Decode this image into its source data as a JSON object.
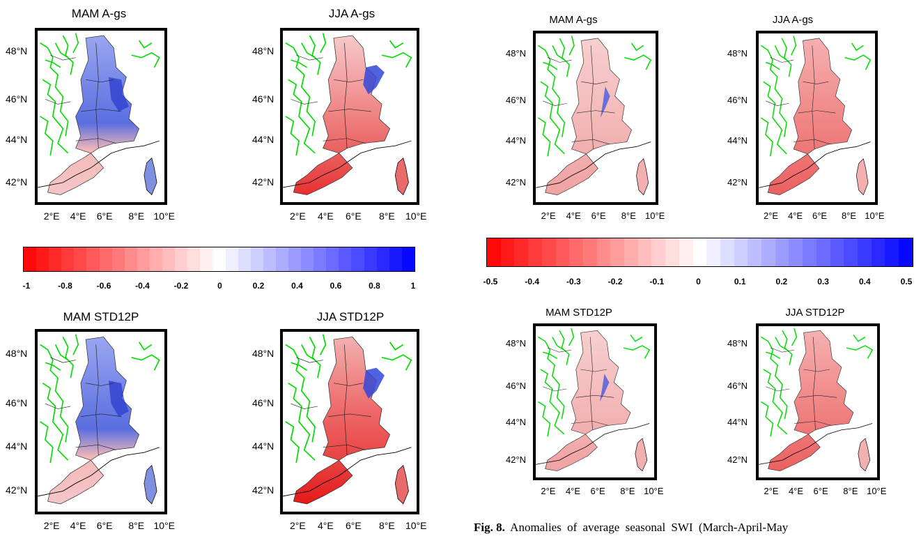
{
  "left_panels": [
    {
      "title": "MAM A-gs",
      "mode": "mam"
    },
    {
      "title": "JJA A-gs",
      "mode": "jja"
    },
    {
      "title": "MAM STD12P",
      "mode": "mam2"
    },
    {
      "title": "JJA STD12P",
      "mode": "jja2"
    }
  ],
  "right_panels": [
    {
      "title": "MAM A-gs",
      "mode": "rmam"
    },
    {
      "title": "JJA A-gs",
      "mode": "rjja"
    },
    {
      "title": "MAM STD12P",
      "mode": "rmam"
    },
    {
      "title": "JJA STD12P",
      "mode": "rjja"
    }
  ],
  "lat_labels": [
    "48°N",
    "46°N",
    "44°N",
    "42°N"
  ],
  "lon_labels": [
    "2°E",
    "4°E",
    "6°E",
    "8°E",
    "10°E"
  ],
  "colorbar_left": {
    "ticks": [
      "-1",
      "-0.8",
      "-0.6",
      "-0.4",
      "-0.2",
      "0",
      "0.2",
      "0.4",
      "0.6",
      "0.8",
      "1"
    ],
    "range": [
      -1,
      1
    ]
  },
  "colorbar_right": {
    "ticks": [
      "-0.5",
      "-0.4",
      "-0.3",
      "-0.2",
      "-0.1",
      "0",
      "0.1",
      "0.2",
      "0.3",
      "0.4",
      "0.5"
    ],
    "range": [
      -0.5,
      0.5
    ]
  },
  "colors": {
    "negative": "#ff0000",
    "positive": "#0000ff",
    "rivers": "#00e000",
    "borders": "#000000"
  },
  "caption": {
    "label": "Fig. 8.",
    "text": " Anomalies of average seasonal SWI (March-April-May"
  }
}
